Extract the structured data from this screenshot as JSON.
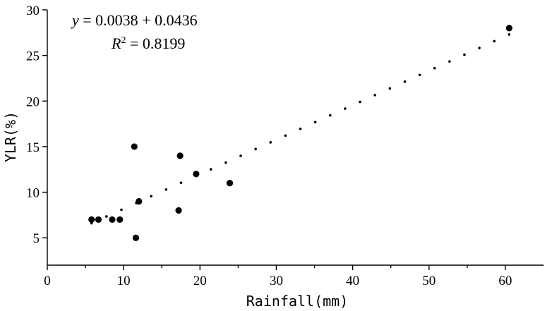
{
  "chart_data": {
    "type": "scatter",
    "xlabel": "Rainfall(mm)",
    "ylabel": "YLR(%)",
    "xlim": [
      0,
      65
    ],
    "ylim": [
      2,
      30
    ],
    "xticks": [
      0,
      10,
      20,
      30,
      40,
      50,
      60
    ],
    "yticks": [
      5,
      10,
      15,
      20,
      25,
      30
    ],
    "grid": false,
    "series": [
      {
        "kind": "points",
        "color": "#000000",
        "points": [
          {
            "x": 5.8,
            "y": 7
          },
          {
            "x": 6.7,
            "y": 7
          },
          {
            "x": 8.5,
            "y": 7
          },
          {
            "x": 9.5,
            "y": 7
          },
          {
            "x": 11.4,
            "y": 15
          },
          {
            "x": 11.6,
            "y": 5
          },
          {
            "x": 12.0,
            "y": 9
          },
          {
            "x": 17.2,
            "y": 8
          },
          {
            "x": 17.4,
            "y": 14
          },
          {
            "x": 19.5,
            "y": 12
          },
          {
            "x": 23.9,
            "y": 11
          },
          {
            "x": 60.5,
            "y": 28
          }
        ]
      },
      {
        "kind": "fit",
        "color": "#000000",
        "x_range": [
          5.8,
          60.5
        ],
        "y_range": [
          6.6,
          27.3
        ]
      }
    ],
    "annotations": [
      {
        "parts": [
          "y",
          " = 0.0038 + 0.0436"
        ]
      },
      {
        "parts": [
          "R",
          "2",
          " = 0.8199"
        ]
      }
    ]
  }
}
